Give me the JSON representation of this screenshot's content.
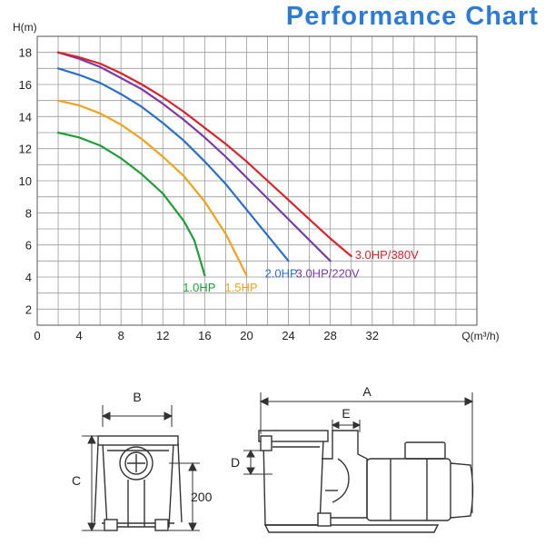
{
  "page": {
    "title": "Performance Chart"
  },
  "chart_data": {
    "type": "line",
    "xlabel": "Q(m³/h)",
    "ylabel": "H(m)",
    "xlim": [
      0,
      42
    ],
    "ylim": [
      1,
      19
    ],
    "x_ticks": [
      "0",
      "4",
      "8",
      "12",
      "16",
      "20",
      "24",
      "28",
      "32"
    ],
    "x_tick_values": [
      0,
      4,
      8,
      12,
      16,
      20,
      24,
      28,
      32
    ],
    "y_ticks": [
      "2",
      "4",
      "6",
      "8",
      "10",
      "12",
      "14",
      "16",
      "18"
    ],
    "y_tick_values": [
      2,
      4,
      6,
      8,
      10,
      12,
      14,
      16,
      18
    ],
    "grid": true,
    "series": [
      {
        "name": "1.0HP",
        "color": "#1f9e3a",
        "points": [
          [
            2,
            13
          ],
          [
            4,
            12.7
          ],
          [
            6,
            12.2
          ],
          [
            8,
            11.4
          ],
          [
            10,
            10.4
          ],
          [
            12,
            9.2
          ],
          [
            14,
            7.5
          ],
          [
            15,
            6.3
          ],
          [
            16,
            4.1
          ]
        ]
      },
      {
        "name": "1.5HP",
        "color": "#f0a21b",
        "points": [
          [
            2,
            15
          ],
          [
            4,
            14.7
          ],
          [
            6,
            14.2
          ],
          [
            8,
            13.5
          ],
          [
            10,
            12.6
          ],
          [
            12,
            11.5
          ],
          [
            14,
            10.3
          ],
          [
            16,
            8.7
          ],
          [
            18,
            6.7
          ],
          [
            20,
            4.1
          ]
        ]
      },
      {
        "name": "2.0HP",
        "color": "#2a6fc9",
        "points": [
          [
            2,
            17
          ],
          [
            4,
            16.6
          ],
          [
            6,
            16.1
          ],
          [
            8,
            15.4
          ],
          [
            10,
            14.6
          ],
          [
            12,
            13.6
          ],
          [
            14,
            12.5
          ],
          [
            16,
            11.2
          ],
          [
            18,
            9.8
          ],
          [
            20,
            8.2
          ],
          [
            22,
            6.6
          ],
          [
            24,
            5
          ]
        ]
      },
      {
        "name": "3.0HP/220V",
        "color": "#7a3aa8",
        "points": [
          [
            2,
            18
          ],
          [
            4,
            17.6
          ],
          [
            6,
            17.1
          ],
          [
            8,
            16.4
          ],
          [
            10,
            15.7
          ],
          [
            12,
            14.8
          ],
          [
            14,
            13.8
          ],
          [
            16,
            12.7
          ],
          [
            18,
            11.5
          ],
          [
            20,
            10.2
          ],
          [
            22,
            8.9
          ],
          [
            24,
            7.6
          ],
          [
            26,
            6.3
          ],
          [
            28,
            5
          ]
        ]
      },
      {
        "name": "3.0HP/380V",
        "color": "#d8232a",
        "points": [
          [
            2,
            18
          ],
          [
            4,
            17.7
          ],
          [
            6,
            17.3
          ],
          [
            8,
            16.7
          ],
          [
            10,
            16
          ],
          [
            12,
            15.2
          ],
          [
            14,
            14.3
          ],
          [
            16,
            13.3
          ],
          [
            18,
            12.3
          ],
          [
            20,
            11.2
          ],
          [
            22,
            10
          ],
          [
            24,
            8.8
          ],
          [
            26,
            7.6
          ],
          [
            28,
            6.4
          ],
          [
            30,
            5.3
          ]
        ]
      }
    ]
  },
  "dimensions": {
    "labels": {
      "A": "A",
      "B": "B",
      "C": "C",
      "D": "D",
      "E": "E",
      "h200": "200"
    }
  }
}
